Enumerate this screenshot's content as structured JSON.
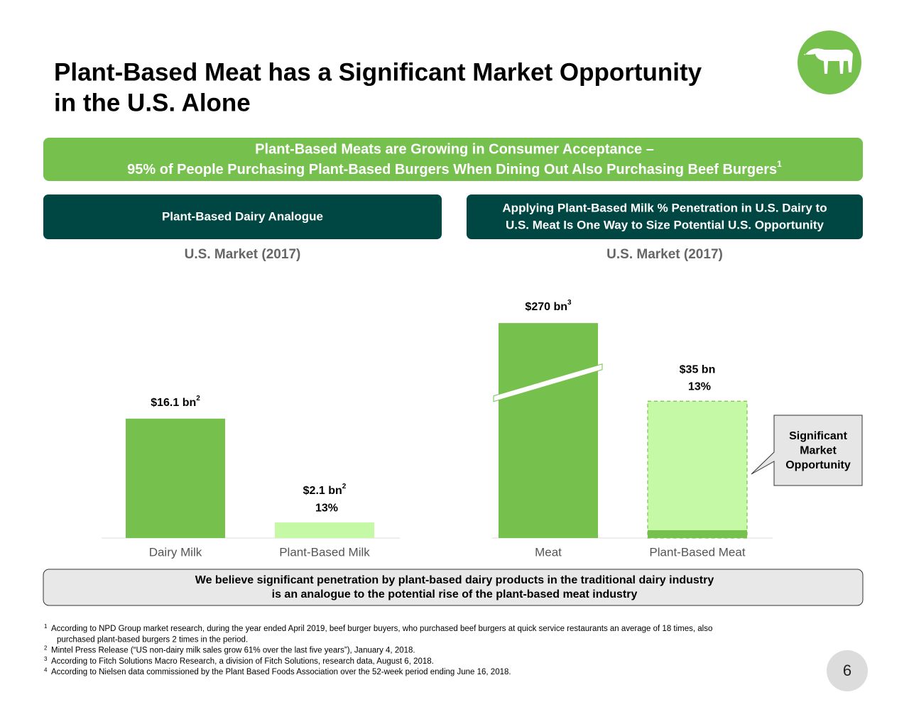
{
  "header": {
    "title_lines": [
      "Plant-Based Meat has a Significant Market Opportunity",
      "in the U.S. Alone"
    ]
  },
  "banner": {
    "lines": [
      "Plant-Based Meats are Growing in Consumer Acceptance –",
      "95% of People Purchasing Plant-Based Burgers When Dining Out Also Purchasing Beef Burgers"
    ],
    "note": "1"
  },
  "chart_data": [
    {
      "type": "bar",
      "heading": [
        "Plant-Based Dairy Analogue"
      ],
      "title": "U.S. Market (2017)",
      "categories": [
        "Dairy Milk",
        "Plant-Based Milk"
      ],
      "values": [
        16.1,
        2.1
      ],
      "value_labels": [
        "$16.1 bn",
        "$2.1 bn"
      ],
      "value_label_notes": [
        "2",
        "2"
      ],
      "share_labels": [
        null,
        "13%"
      ],
      "colors": [
        "#76c04e",
        "#c6f9a6"
      ],
      "dashed": [
        false,
        false
      ],
      "ylim": [
        0,
        20
      ]
    },
    {
      "type": "bar",
      "heading": [
        "Applying Plant-Based Milk % Penetration in U.S. Dairy to",
        "U.S. Meat Is One Way to Size Potential U.S. Opportunity"
      ],
      "title": "U.S. Market (2017)",
      "categories": [
        "Meat",
        "Plant-Based Meat"
      ],
      "values": [
        270,
        35
      ],
      "value_labels": [
        "$270 bn",
        "$35 bn"
      ],
      "value_label_notes": [
        "3",
        null
      ],
      "share_labels": [
        null,
        "13%"
      ],
      "colors": [
        "#76c04e",
        "#c6f9a6"
      ],
      "dashed": [
        false,
        true
      ],
      "current_values": [
        null,
        2
      ],
      "current_color": "#76c04e",
      "ylim": [
        0,
        290
      ],
      "y_break": [
        40,
        255
      ],
      "callout": [
        "Significant",
        "Market",
        "Opportunity"
      ]
    }
  ],
  "conclusion": {
    "lines": [
      "We believe significant penetration by plant-based dairy products in the traditional dairy industry",
      "is an analogue to the potential rise of the plant-based meat industry"
    ]
  },
  "footnotes": [
    {
      "mark": "1",
      "lines": [
        "According to NPD Group market research, during the year ended April 2019, beef burger buyers, who purchased beef burgers at quick service restaurants an average of 18 times, also",
        "purchased plant-based burgers 2 times in the period."
      ]
    },
    {
      "mark": "2",
      "lines": [
        "Mintel Press Release (“US non-dairy milk sales grow 61% over the last five years”), January 4, 2018."
      ]
    },
    {
      "mark": "3",
      "lines": [
        "According to Fitch Solutions Macro Research, a division of Fitch Solutions, research data, August 6, 2018."
      ]
    },
    {
      "mark": "4",
      "lines": [
        "According to Nielsen data commissioned by the Plant Based Foods Association over the 52-week period ending June 16, 2018."
      ]
    }
  ],
  "page_number": 6
}
